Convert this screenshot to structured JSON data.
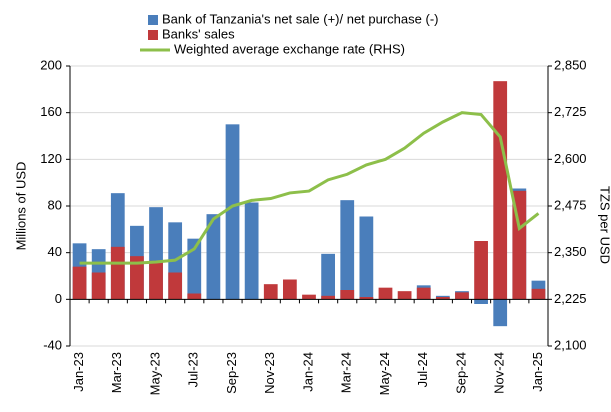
{
  "chart_data": {
    "type": "bar-line",
    "categories": [
      "Jan-23",
      null,
      "Mar-23",
      null,
      "May-23",
      null,
      "Jul-23",
      null,
      "Sep-23",
      null,
      "Nov-23",
      null,
      "Jan-24",
      null,
      "Mar-24",
      null,
      "May-24",
      null,
      "Jul-24",
      null,
      "Sep-24",
      null,
      "Nov-24",
      null,
      "Jan-25"
    ],
    "series": [
      {
        "name": "Bank of Tanzania's net sale (+)/ net purchase (-)",
        "color": "#4a7ebb",
        "kind": "bar",
        "values": [
          48,
          43,
          91,
          63,
          79,
          66,
          52,
          73,
          150,
          83,
          0,
          0,
          0,
          39,
          85,
          71,
          0,
          0,
          12,
          3,
          7,
          -4,
          -23,
          95,
          16
        ]
      },
      {
        "name": "Banks' sales",
        "color": "#c0393b",
        "kind": "bar",
        "values": [
          28,
          23,
          45,
          37,
          33,
          23,
          5,
          0,
          0,
          0,
          13,
          17,
          4,
          3,
          8,
          2,
          10,
          7,
          10,
          2,
          6,
          50,
          187,
          93,
          9
        ]
      },
      {
        "name": "Weighted average exchange rate (RHS)",
        "color": "#8dbf4a",
        "kind": "line",
        "axis": "y2",
        "values": [
          2322,
          2322,
          2322,
          2322,
          2325,
          2330,
          2360,
          2440,
          2475,
          2490,
          2495,
          2510,
          2515,
          2545,
          2560,
          2585,
          2600,
          2630,
          2670,
          2700,
          2725,
          2720,
          2660,
          2415,
          2455
        ]
      }
    ],
    "ylabel": "Millions of USD",
    "y2label": "TZS per USD",
    "ylim": [
      -40,
      200
    ],
    "yticks": [
      -40,
      0,
      40,
      80,
      120,
      160,
      200
    ],
    "y2lim": [
      2100,
      2850
    ],
    "y2ticks": [
      {
        "value": 2100,
        "label": "2,100"
      },
      {
        "value": 2225,
        "label": "2,225"
      },
      {
        "value": 2350,
        "label": "2,350"
      },
      {
        "value": 2475,
        "label": "2,475"
      },
      {
        "value": 2600,
        "label": "2,600"
      },
      {
        "value": 2725,
        "label": "2,725"
      },
      {
        "value": 2850,
        "label": "2,850"
      }
    ],
    "grid": true,
    "legend_position": "top"
  }
}
